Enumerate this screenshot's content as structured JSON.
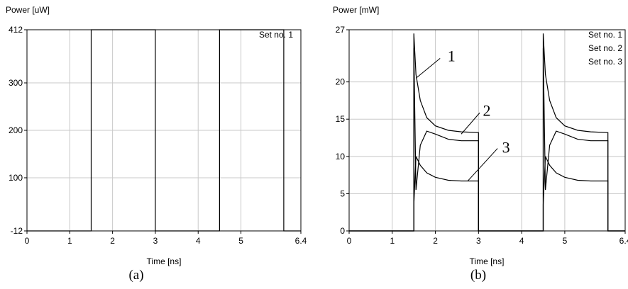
{
  "chart_data": [
    {
      "type": "line",
      "ylabel": "Power [uW]",
      "xlabel": "Time [ns]",
      "xlim": [
        0,
        6.4
      ],
      "ylim": [
        -12,
        412
      ],
      "x_ticks": [
        0,
        1,
        2,
        3,
        4,
        5,
        6.4
      ],
      "x_tick_labels": [
        "0",
        "1",
        "2",
        "3",
        "4",
        "5",
        "6.4"
      ],
      "y_ticks": [
        -12,
        100,
        200,
        300,
        412
      ],
      "y_tick_labels": [
        "-12",
        "100",
        "200",
        "300",
        "412"
      ],
      "grid": true,
      "legend": [
        "Set no. 1"
      ],
      "legend_placement": "top-right",
      "caption": "(a)",
      "series": [
        {
          "name": "Set no. 1",
          "x": [
            0,
            1.5,
            1.5,
            3.0,
            3.0,
            4.5,
            4.5,
            6.0,
            6.0,
            6.4
          ],
          "y": [
            -12,
            -12,
            412,
            412,
            -12,
            -12,
            412,
            412,
            -12,
            -12
          ]
        }
      ]
    },
    {
      "type": "line",
      "ylabel": "Power [mW]",
      "xlabel": "Time [ns]",
      "xlim": [
        0,
        6.4
      ],
      "ylim": [
        0,
        27
      ],
      "x_ticks": [
        0,
        1,
        2,
        3,
        4,
        5,
        6.4
      ],
      "x_tick_labels": [
        "0",
        "1",
        "2",
        "3",
        "4",
        "5",
        "6.4"
      ],
      "y_ticks": [
        0,
        5,
        10,
        15,
        20,
        27
      ],
      "y_tick_labels": [
        "0",
        "5",
        "10",
        "15",
        "20",
        "27"
      ],
      "grid": true,
      "legend": [
        "Set no. 1",
        "Set no. 2",
        "Set no. 3"
      ],
      "legend_placement": "top-right",
      "caption": "(b)",
      "annotations": [
        {
          "text": "1",
          "target": [
            1.55,
            20.5
          ]
        },
        {
          "text": "2",
          "target": [
            2.6,
            13.0
          ]
        },
        {
          "text": "3",
          "target": [
            2.75,
            6.7
          ]
        }
      ],
      "series": [
        {
          "name": "Set no. 1",
          "x": [
            0,
            1.5,
            1.5,
            1.55,
            1.65,
            1.8,
            2.0,
            2.3,
            2.6,
            3.0,
            3.0,
            4.5,
            4.5,
            4.55,
            4.65,
            4.8,
            5.0,
            5.3,
            5.6,
            6.0,
            6.0,
            6.4
          ],
          "y": [
            0,
            0,
            26.5,
            21,
            17.5,
            15.2,
            14.1,
            13.5,
            13.3,
            13.2,
            0,
            0,
            26.5,
            21,
            17.5,
            15.2,
            14.1,
            13.5,
            13.3,
            13.2,
            0,
            0
          ]
        },
        {
          "name": "Set no. 2",
          "x": [
            0,
            1.5,
            1.5,
            1.55,
            1.65,
            1.8,
            2.0,
            2.3,
            2.6,
            3.0,
            3.0,
            4.5,
            4.5,
            4.55,
            4.65,
            4.8,
            5.0,
            5.3,
            5.6,
            6.0,
            6.0,
            6.4
          ],
          "y": [
            0,
            0,
            24.5,
            5.5,
            11.5,
            13.4,
            13.0,
            12.3,
            12.1,
            12.1,
            0,
            0,
            24.5,
            5.5,
            11.5,
            13.4,
            13.0,
            12.3,
            12.1,
            12.1,
            0,
            0
          ]
        },
        {
          "name": "Set no. 3",
          "x": [
            0,
            1.5,
            1.5,
            1.55,
            1.65,
            1.8,
            2.0,
            2.3,
            2.6,
            3.0,
            3.0,
            4.5,
            4.5,
            4.55,
            4.65,
            4.8,
            5.0,
            5.3,
            5.6,
            6.0,
            6.0,
            6.4
          ],
          "y": [
            0,
            0,
            3.5,
            10.0,
            8.8,
            7.8,
            7.2,
            6.8,
            6.7,
            6.7,
            0,
            0,
            3.5,
            10.0,
            8.8,
            7.8,
            7.2,
            6.8,
            6.7,
            6.7,
            0,
            0
          ]
        }
      ]
    }
  ]
}
